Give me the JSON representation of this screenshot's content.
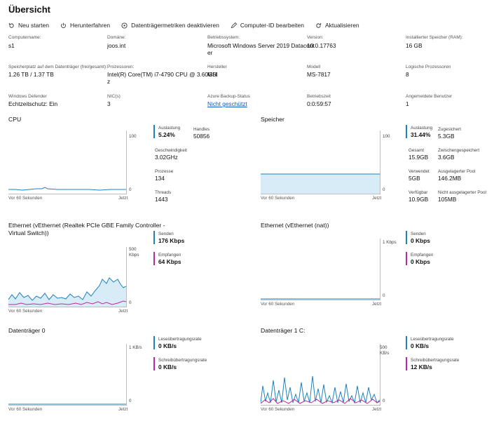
{
  "page": {
    "title": "Übersicht"
  },
  "toolbar": {
    "items": [
      {
        "label": "Neu starten",
        "icon": "restart-icon"
      },
      {
        "label": "Herunterfahren",
        "icon": "power-icon"
      },
      {
        "label": "Datenträgermetriken deaktivieren",
        "icon": "disk-metrics-icon"
      },
      {
        "label": "Computer-ID bearbeiten",
        "icon": "edit-icon"
      },
      {
        "label": "Aktualisieren",
        "icon": "refresh-icon"
      }
    ]
  },
  "properties": {
    "computername": {
      "label": "Computername:",
      "value": "s1"
    },
    "domain": {
      "label": "Domäne:",
      "value": "joos.int"
    },
    "os": {
      "label": "Betriebssystem:",
      "value_line1": "Microsoft Windows Server 2019 Datacent",
      "value_line2": "er"
    },
    "version": {
      "label": "Version:",
      "value": "10.0.17763"
    },
    "ram": {
      "label": "Installierter Speicher (RAM):",
      "value": "16 GB"
    },
    "disk_space": {
      "label": "Speicherplatz auf dem Datenträger (frei/gesamt):",
      "value": "1.26 TB / 1.37 TB"
    },
    "processors": {
      "label": "Prozessoren:",
      "value_line1": "Intel(R) Core(TM) i7-4790 CPU @ 3.60GH",
      "value_line2": "z"
    },
    "manufacturer": {
      "label": "Hersteller",
      "value": "MSI"
    },
    "model": {
      "label": "Modell",
      "value": "MS-7817"
    },
    "logical_processors": {
      "label": "Logische Prozessoren",
      "value": "8"
    },
    "defender": {
      "label": "Windows Defender",
      "value": "Echtzeitschutz: Ein"
    },
    "nics": {
      "label": "NIC(s)",
      "value": "3"
    },
    "backup": {
      "label": "Azure Backup-Status",
      "value": "Nicht geschützt"
    },
    "uptime": {
      "label": "Betriebszeit",
      "value": "0:0:59:57"
    },
    "users": {
      "label": "Angemeldete Benutzer",
      "value": "1"
    }
  },
  "charts": {
    "axis_left_label": "Vor 60 Sekunden",
    "axis_right_label": "Jetzt",
    "cpu": {
      "title": "CPU",
      "ymax_label": "100",
      "ymin_label": "0",
      "metrics": {
        "auslastung": {
          "label": "Auslastung",
          "value": "5.24%"
        },
        "handles": {
          "label": "Handles",
          "value": "50856"
        },
        "geschwindigkeit": {
          "label": "Geschwindigkeit",
          "value": "3.02GHz"
        },
        "prozesse": {
          "label": "Prozesse",
          "value": "134"
        },
        "threads": {
          "label": "Threads",
          "value": "1443"
        }
      }
    },
    "speicher": {
      "title": "Speicher",
      "ymax_label": "100",
      "ymin_label": "0",
      "metrics": {
        "auslastung": {
          "label": "Auslastung",
          "value": "31.44%"
        },
        "zugesichert": {
          "label": "Zugesichert",
          "value": "5.3GB"
        },
        "gesamt": {
          "label": "Gesamt",
          "value": "15.9GB"
        },
        "zwischengespeichert": {
          "label": "Zwischengespeichert",
          "value": "3.6GB"
        },
        "verwendet": {
          "label": "Verwendet",
          "value": "5GB"
        },
        "ausgelagerter_pool": {
          "label": "Ausgelagerter Pool",
          "value": "146.2MB"
        },
        "verfuegbar": {
          "label": "Verfügbar",
          "value": "10.9GB"
        },
        "nicht_ausgelagerter_pool": {
          "label": "Nicht ausgelagerter Pool",
          "value": "105MB"
        }
      }
    },
    "ethernet1": {
      "title_line1": "Ethernet (vEthernet (Realtek PCIe GBE Family Controller -",
      "title_line2": "Virtual Switch))",
      "ymax_label": "500",
      "ymax_unit": "Kbps",
      "ymin_label": "0",
      "senden": {
        "label": "Senden",
        "value": "176 Kbps"
      },
      "empfangen": {
        "label": "Empfangen",
        "value": "64 Kbps"
      }
    },
    "ethernet2": {
      "title": "Ethernet (vEthernet (nat))",
      "ymax_label": "1 Kbps",
      "ymin_label": "0",
      "senden": {
        "label": "Senden",
        "value": "0 Kbps"
      },
      "empfangen": {
        "label": "Empfangen",
        "value": "0 Kbps"
      }
    },
    "disk0": {
      "title": "Datenträger 0",
      "ymax_label": "1 KB/s",
      "ymin_label": "0",
      "lese": {
        "label": "Leseübertragungsrate",
        "value": "0 KB/s"
      },
      "schreib": {
        "label": "Schreibübertragungsrate",
        "value": "0 KB/s"
      }
    },
    "disk1": {
      "title": "Datenträger 1 C:",
      "ymax_label": "500",
      "ymax_unit": "KB/s",
      "ymin_label": "0",
      "lese": {
        "label": "Leseübertragungsrate",
        "value": "0 KB/s"
      },
      "schreib": {
        "label": "Schreibübertragungsrate",
        "value": "12 KB/s"
      }
    }
  },
  "colors": {
    "blue": "#1c83bd",
    "pink": "#c0279a",
    "fill": "#d8ecf8",
    "link": "#0a5cc5"
  }
}
